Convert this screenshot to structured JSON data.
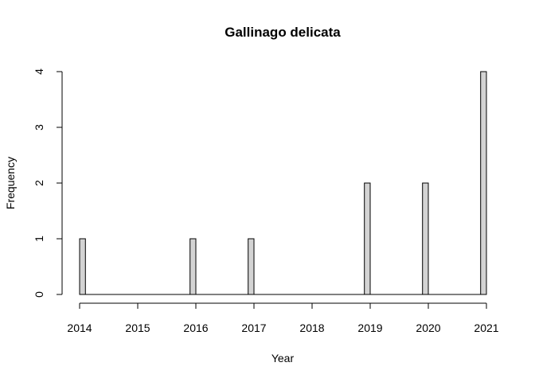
{
  "chart_data": {
    "type": "bar",
    "title": "Gallinago delicata",
    "xlabel": "Year",
    "ylabel": "Frequency",
    "x_ticks": [
      "2014",
      "2015",
      "2016",
      "2017",
      "2018",
      "2019",
      "2020",
      "2021"
    ],
    "y_ticks": [
      "0",
      "1",
      "2",
      "3",
      "4"
    ],
    "xlim": [
      2014,
      2021
    ],
    "ylim": [
      0,
      4
    ],
    "bin_width_years": 0.1,
    "bins": [
      {
        "x": 2014.05,
        "value": 1
      },
      {
        "x": 2015.95,
        "value": 1
      },
      {
        "x": 2016.95,
        "value": 1
      },
      {
        "x": 2018.95,
        "value": 2
      },
      {
        "x": 2019.95,
        "value": 2
      },
      {
        "x": 2020.95,
        "value": 4
      }
    ],
    "grid": false,
    "legend": "none",
    "colors": {
      "bar_fill": "#d3d3d3",
      "bar_stroke": "#000000"
    }
  }
}
